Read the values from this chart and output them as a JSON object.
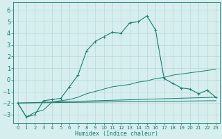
{
  "xlabel": "Humidex (Indice chaleur)",
  "xlim": [
    -0.5,
    23.5
  ],
  "ylim": [
    -3.7,
    6.7
  ],
  "yticks": [
    -3,
    -2,
    -1,
    0,
    1,
    2,
    3,
    4,
    5,
    6
  ],
  "xticks": [
    0,
    1,
    2,
    3,
    4,
    5,
    6,
    7,
    8,
    9,
    10,
    11,
    12,
    13,
    14,
    15,
    16,
    17,
    18,
    19,
    20,
    21,
    22,
    23
  ],
  "bg_color": "#d6eeee",
  "grid_color": "#b8d8d8",
  "line_color": "#1a7a6e",
  "line1_x": [
    0,
    1,
    2,
    3,
    4,
    5,
    6,
    7,
    8,
    9,
    10,
    11,
    12,
    13,
    14,
    15,
    16,
    17,
    18,
    19,
    20,
    21,
    22,
    23
  ],
  "line1_y": [
    -2.0,
    -3.2,
    -3.0,
    -1.8,
    -1.7,
    -1.6,
    -0.6,
    0.4,
    2.5,
    3.3,
    3.7,
    4.1,
    4.0,
    4.9,
    5.0,
    5.5,
    4.3,
    0.1,
    -0.3,
    -0.7,
    -0.8,
    -1.2,
    -0.9,
    -1.5
  ],
  "line2_x": [
    0,
    1,
    2,
    3,
    4,
    5,
    6,
    7,
    8,
    9,
    10,
    11,
    12,
    13,
    14,
    15,
    16,
    17,
    18,
    19,
    20,
    21,
    22,
    23
  ],
  "line2_y": [
    -2.0,
    -3.2,
    -2.8,
    -2.6,
    -1.9,
    -1.8,
    -1.7,
    -1.5,
    -1.2,
    -1.0,
    -0.8,
    -0.6,
    -0.5,
    -0.4,
    -0.2,
    -0.1,
    0.1,
    0.2,
    0.4,
    0.5,
    0.6,
    0.7,
    0.8,
    0.9
  ],
  "line3_x": [
    0,
    23
  ],
  "line3_y": [
    -2.0,
    -1.5
  ],
  "line4_x": [
    0,
    23
  ],
  "line4_y": [
    -2.0,
    -1.8
  ]
}
